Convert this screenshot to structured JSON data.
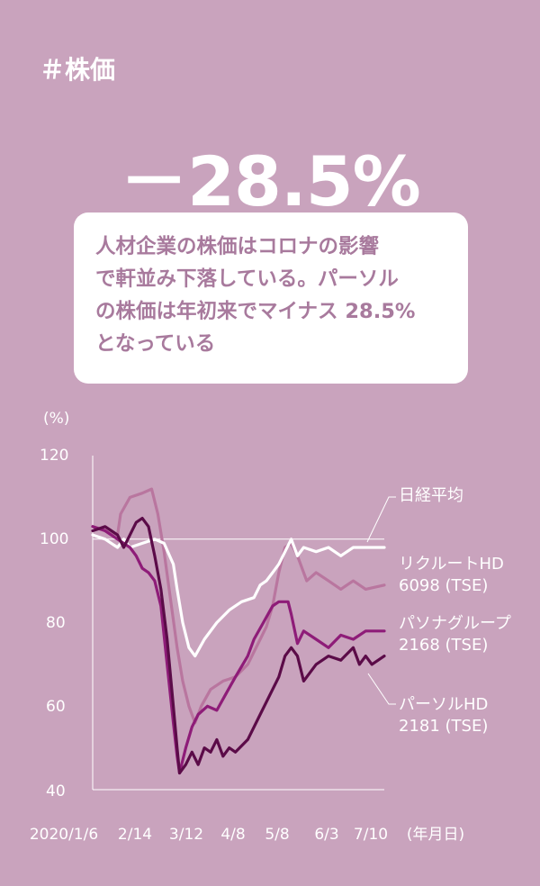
{
  "header": {
    "tag": "＃株価"
  },
  "headline": {
    "value": "－28.5%"
  },
  "callout": {
    "text_lines": [
      "人材企業の株価はコロナの影響",
      "で軒並み下落している。パーソル",
      "の株価は年初来でマイナス 28.5%",
      "となっている"
    ]
  },
  "colors": {
    "background": "#c9a3bd",
    "nikkei": "#ffffff",
    "recruit": "#b9769f",
    "pasona": "#8e1c78",
    "persol": "#5b0b48"
  },
  "chart_data": {
    "type": "line",
    "ylabel": "(%)",
    "xunit": "(年月日)",
    "ylim": [
      40,
      120
    ],
    "yticks": [
      "120",
      "100",
      "80",
      "60",
      "40"
    ],
    "xticks": [
      "2020/1/6",
      "2/14",
      "3/12",
      "4/8",
      "5/8",
      "6/3",
      "7/10"
    ],
    "grid_reference": 100,
    "series": [
      {
        "name": "日経平均",
        "code": "",
        "color": "#ffffff",
        "x": [
          0,
          4,
          8,
          10,
          12,
          16,
          20,
          23,
          26,
          27.2,
          29,
          31,
          33,
          36,
          40,
          44,
          48,
          52,
          54,
          56,
          58,
          60,
          64,
          66,
          68,
          72,
          76,
          80,
          84,
          88,
          94
        ],
        "y": [
          101,
          100,
          98,
          100,
          98,
          99,
          100,
          99,
          94,
          88,
          80,
          74,
          72,
          76,
          80,
          83,
          85,
          86,
          89,
          90,
          92,
          94,
          100,
          96,
          98,
          97,
          98,
          96,
          98,
          98,
          98
        ]
      },
      {
        "name": "リクルートHD",
        "code": "6098 (TSE)",
        "color": "#b9769f",
        "x": [
          0,
          5,
          8,
          9,
          12,
          16,
          19,
          21,
          23,
          25,
          27.2,
          29,
          31,
          33,
          35,
          38,
          42,
          46,
          50,
          54,
          56,
          58,
          60,
          62,
          64,
          66,
          69,
          72,
          76,
          80,
          84,
          88,
          94
        ],
        "y": [
          103,
          102,
          101,
          106,
          110,
          111,
          112,
          106,
          97,
          86,
          74,
          66,
          60,
          56,
          60,
          64,
          66,
          67,
          70,
          76,
          79,
          84,
          92,
          98,
          99,
          96,
          90,
          92,
          90,
          88,
          90,
          88,
          89
        ]
      },
      {
        "name": "パソナグループ",
        "code": "2168 (TSE)",
        "color": "#8e1c78",
        "x": [
          0,
          4,
          8,
          10,
          12,
          14,
          16,
          18,
          20,
          22,
          24,
          26,
          27.2,
          28,
          30,
          32,
          34,
          37,
          40,
          43,
          46,
          50,
          52,
          55,
          58,
          60,
          63,
          64,
          66,
          68,
          72,
          76,
          80,
          84,
          88,
          90,
          94
        ],
        "y": [
          103,
          102,
          100,
          99,
          98,
          96,
          93,
          92,
          90,
          84,
          70,
          56,
          48,
          44,
          50,
          55,
          58,
          60,
          59,
          63,
          67,
          72,
          76,
          80,
          84,
          85,
          85,
          82,
          75,
          78,
          76,
          74,
          77,
          76,
          78,
          78,
          78
        ]
      },
      {
        "name": "パーソルHD",
        "code": "2181 (TSE)",
        "color": "#5b0b48",
        "x": [
          0,
          4,
          8,
          10,
          12,
          14,
          16,
          18,
          20,
          22,
          24,
          26,
          27.2,
          28,
          30,
          32,
          34,
          36,
          38,
          40,
          42,
          44,
          46,
          50,
          54,
          58,
          60,
          62,
          64,
          66,
          68,
          72,
          76,
          80,
          84,
          86,
          88,
          90,
          94
        ],
        "y": [
          102,
          103,
          101,
          98,
          101,
          104,
          105,
          103,
          96,
          88,
          76,
          60,
          50,
          44,
          46,
          49,
          46,
          50,
          49,
          52,
          48,
          50,
          49,
          52,
          58,
          64,
          67,
          72,
          74,
          72,
          66,
          70,
          72,
          71,
          74,
          70,
          72,
          70,
          72
        ]
      }
    ]
  }
}
